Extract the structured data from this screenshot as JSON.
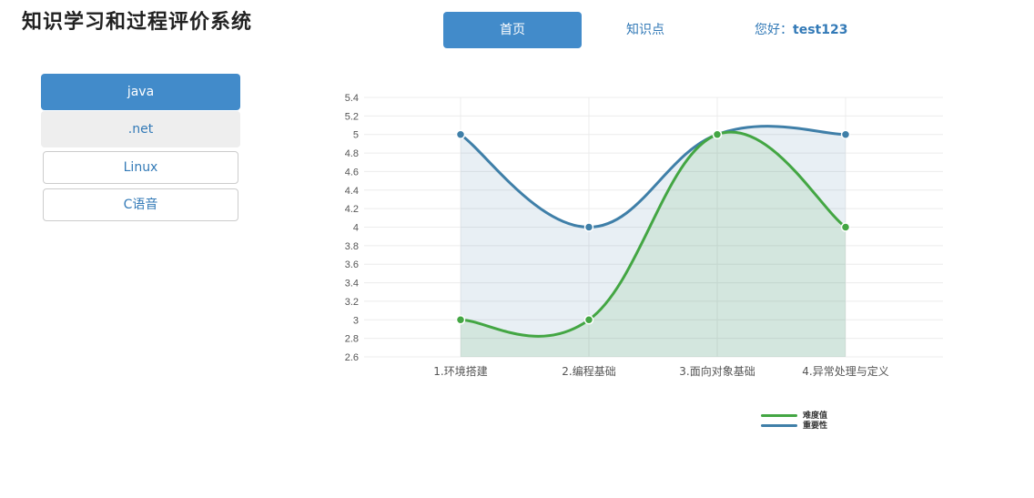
{
  "app": {
    "title": "知识学习和过程评价系统"
  },
  "nav": {
    "home": "首页",
    "knowledge": "知识点",
    "greeting_prefix": "您好：",
    "username": "test123"
  },
  "sidebar": {
    "items": [
      {
        "label": "java",
        "state": "active"
      },
      {
        "label": ".net",
        "state": "muted"
      },
      {
        "label": "Linux",
        "state": "outline"
      },
      {
        "label": "C语音",
        "state": "outline"
      }
    ]
  },
  "colors": {
    "accent": "#428bca",
    "link": "#337ab7",
    "difficulty": "#43a643",
    "importance": "#3f7fa8"
  },
  "chart_data": {
    "type": "line",
    "categories": [
      "1.环境搭建",
      "2.编程基础",
      "3.面向对象基础",
      "4.异常处理与定义"
    ],
    "series": [
      {
        "name": "难度值",
        "values": [
          3,
          3,
          5,
          4
        ],
        "color": "#43a643"
      },
      {
        "name": "重要性",
        "values": [
          5,
          4,
          5,
          5
        ],
        "color": "#3f7fa8"
      }
    ],
    "ylim": [
      2.6,
      5.4
    ],
    "yticks": [
      "5.4",
      "5.2",
      "5",
      "4.8",
      "4.6",
      "4.4",
      "4.2",
      "4",
      "3.8",
      "3.6",
      "3.4",
      "3.2",
      "3",
      "2.8",
      "2.6"
    ],
    "grid": true,
    "curve": "smooth",
    "filled": true,
    "legend": "bottom-right"
  }
}
